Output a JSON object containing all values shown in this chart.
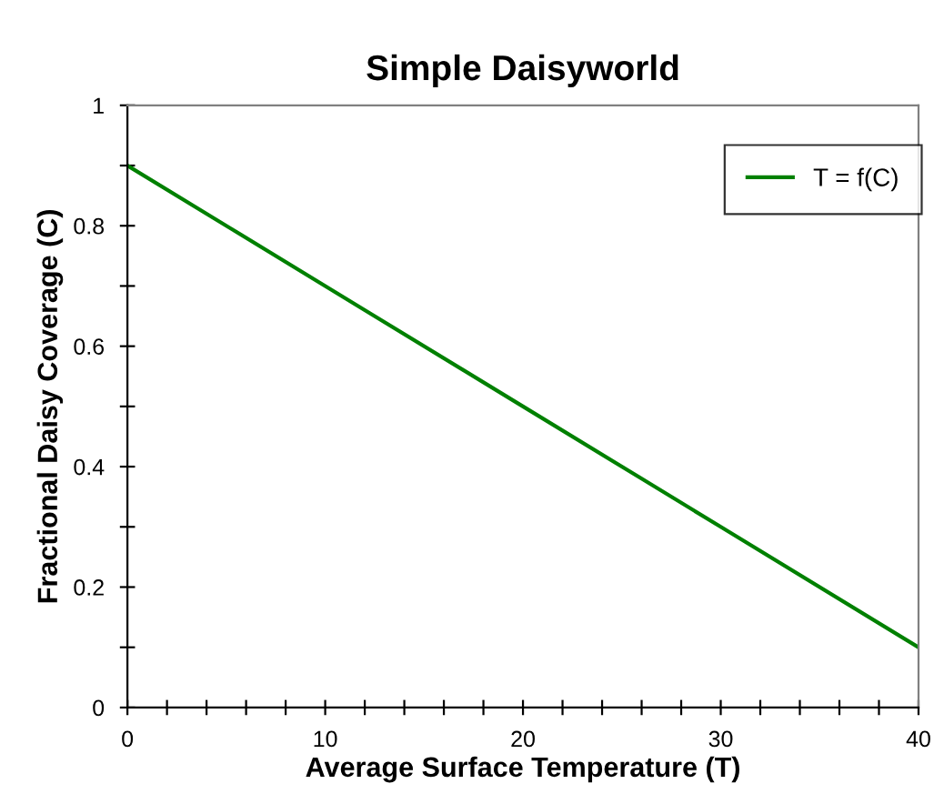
{
  "chart_data": {
    "type": "line",
    "title": "Simple Daisyworld",
    "xlabel": "Average Surface Temperature (T)",
    "ylabel": "Fractional Daisy Coverage (C)",
    "series": [
      {
        "name": "T = f(C)",
        "color": "#008000",
        "x": [
          0,
          10,
          12,
          20,
          26,
          30,
          40
        ],
        "values": [
          0.9,
          0.7,
          0.66,
          0.5,
          0.38,
          0.3,
          0.1
        ]
      }
    ],
    "xlim": [
      0,
      40
    ],
    "ylim": [
      0,
      1
    ],
    "xticks": [
      0,
      {
        "value": 2,
        "label": null
      },
      {
        "value": 4,
        "label": null
      },
      {
        "value": 6,
        "label": null
      },
      {
        "value": 8,
        "label": null
      },
      10,
      {
        "value": 12,
        "label": null
      },
      {
        "value": 14,
        "label": null
      },
      {
        "value": 16,
        "label": null
      },
      {
        "value": 18,
        "label": null
      },
      20,
      {
        "value": 22,
        "label": null
      },
      {
        "value": 24,
        "label": null
      },
      {
        "value": 26,
        "label": null
      },
      {
        "value": 28,
        "label": null
      },
      30,
      {
        "value": 32,
        "label": null
      },
      {
        "value": 34,
        "label": null
      },
      {
        "value": 36,
        "label": null
      },
      {
        "value": 38,
        "label": null
      },
      40
    ],
    "yticks": [
      0,
      {
        "value": 0.1,
        "label": null
      },
      0.2,
      {
        "value": 0.3,
        "label": null
      },
      0.4,
      {
        "value": 0.5,
        "label": null
      },
      0.6,
      {
        "value": 0.7,
        "label": null
      },
      0.8,
      {
        "value": 0.9,
        "label": null
      },
      1
    ],
    "grid": false,
    "legend": "top right",
    "marker": "none",
    "line_style": "solid"
  }
}
